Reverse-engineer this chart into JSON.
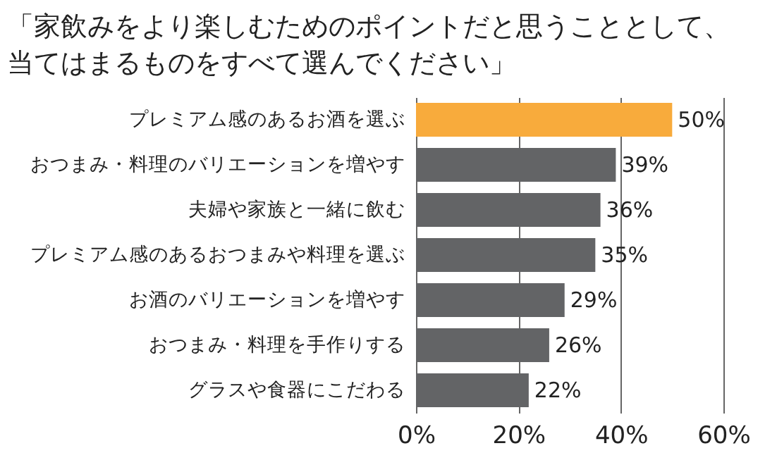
{
  "chart_data": {
    "type": "bar",
    "orientation": "horizontal",
    "title": "「家飲みをより楽しむためのポイントだと思うこととして、当てはまるものをすべて選んでください」",
    "categories": [
      "プレミアム感のあるお酒を選ぶ",
      "おつまみ・料理のバリエーションを増やす",
      "夫婦や家族と一緒に飲む",
      "プレミアム感のあるおつまみや料理を選ぶ",
      "お酒のバリエーションを増やす",
      "おつまみ・料理を手作りする",
      "グラスや食器にこだわる"
    ],
    "values": [
      50,
      39,
      36,
      35,
      29,
      26,
      22
    ],
    "value_labels": [
      "50%",
      "39%",
      "36%",
      "35%",
      "29%",
      "26%",
      "22%"
    ],
    "colors": [
      "#f8ab3c",
      "#636466",
      "#636466",
      "#636466",
      "#636466",
      "#636466",
      "#636466"
    ],
    "xlim": [
      0,
      60
    ],
    "xticks": [
      {
        "value": 0,
        "label": "0%"
      },
      {
        "value": 20,
        "label": "20%"
      },
      {
        "value": 40,
        "label": "40%"
      },
      {
        "value": 60,
        "label": "60%"
      }
    ],
    "grid": "x",
    "legend": false
  }
}
